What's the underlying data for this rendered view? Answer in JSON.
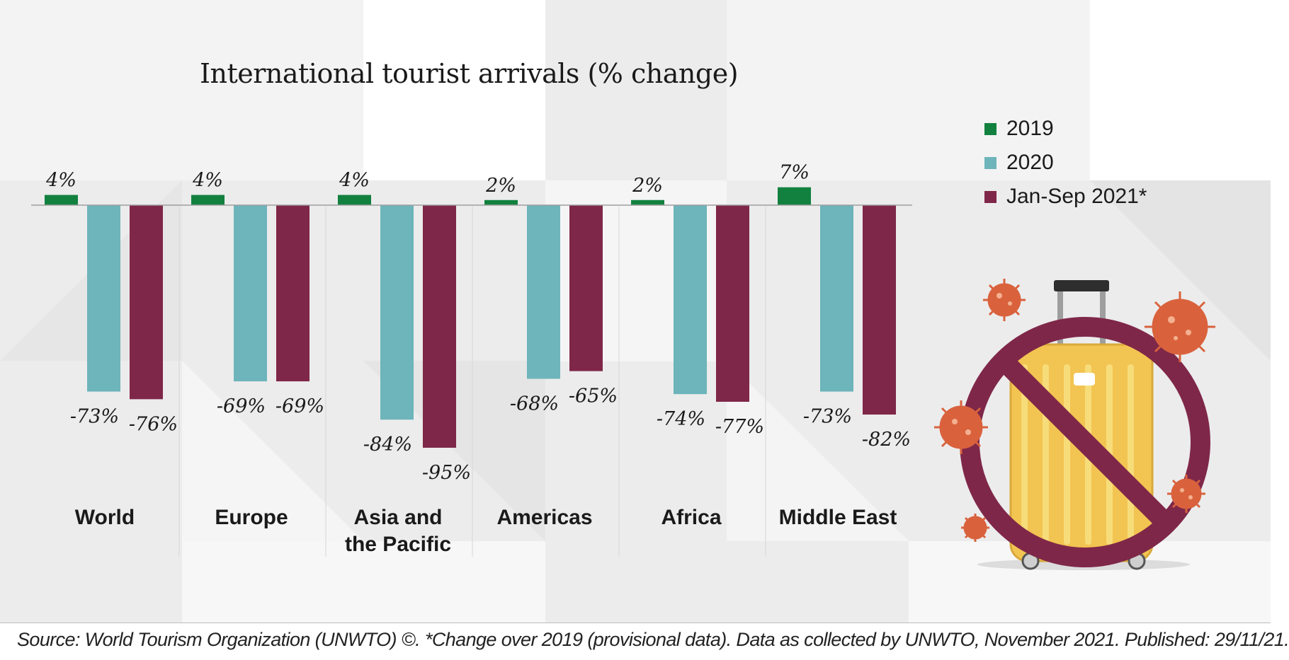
{
  "colors": {
    "series_2019": "#12813f",
    "series_2020": "#6db4bb",
    "series_2021": "#7f2749",
    "axis": "#9e9e9e",
    "prohibition": "#7f2749",
    "suitcase": "#f2c451",
    "virus": "#d9623d"
  },
  "chart_data": {
    "type": "bar",
    "title": "International tourist arrivals (% change)",
    "xlabel": "",
    "ylabel": "",
    "categories": [
      "World",
      "Europe",
      "Asia and the Pacific",
      "Americas",
      "Africa",
      "Middle East"
    ],
    "series": [
      {
        "name": "2019",
        "values": [
          4,
          4,
          4,
          2,
          2,
          7
        ],
        "labels": [
          "4%",
          "4%",
          "4%",
          "2%",
          "2%",
          "7%"
        ]
      },
      {
        "name": "2020",
        "values": [
          -73,
          -69,
          -84,
          -68,
          -74,
          -73
        ],
        "labels": [
          "-73%",
          "-69%",
          "-84%",
          "-68%",
          "-74%",
          "-73%"
        ]
      },
      {
        "name": "Jan-Sep 2021*",
        "values": [
          -76,
          -69,
          -95,
          -65,
          -77,
          -82
        ],
        "labels": [
          "-76%",
          "-69%",
          "-95%",
          "-65%",
          "-77%",
          "-82%"
        ]
      }
    ],
    "ylim": [
      -95,
      7
    ],
    "grid": false,
    "legend": "top-right"
  },
  "illustration": {
    "icons": [
      "suitcase-icon",
      "prohibition-sign-icon",
      "virus-icon"
    ]
  },
  "footer": {
    "source": "Source: World Tourism Organization (UNWTO) ©. *Change over 2019 (provisional data). Data as collected by UNWTO, November 2021. Published: 29/11/21."
  }
}
